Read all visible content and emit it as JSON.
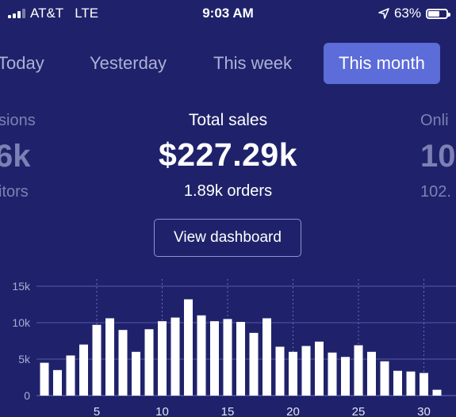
{
  "status_bar": {
    "carrier": "AT&T",
    "network": "LTE",
    "time": "9:03 AM",
    "battery": "63%",
    "battery_level": 0.63,
    "icons": [
      "signal-icon",
      "location-arrow-icon",
      "battery-icon"
    ]
  },
  "tabs": [
    {
      "label": "Today",
      "active": false
    },
    {
      "label": "Yesterday",
      "active": false
    },
    {
      "label": "This week",
      "active": false
    },
    {
      "label": "This month",
      "active": true
    }
  ],
  "metrics": {
    "left": {
      "label": "sions",
      "value": "6k",
      "sub": "itors"
    },
    "center": {
      "label": "Total sales",
      "value": "$227.29k",
      "sub": "1.89k orders"
    },
    "right": {
      "label": "Onli",
      "value": "10",
      "sub": "102."
    }
  },
  "dashboard_button": "View dashboard",
  "colors": {
    "background": "#1f226a",
    "active_tab": "#5c6cd8",
    "bar": "#ffffff",
    "grid": "#5658a8",
    "muted_text": "#7d80b4"
  },
  "chart_data": {
    "type": "bar",
    "title": "",
    "xlabel": "",
    "ylabel": "",
    "x": [
      1,
      2,
      3,
      4,
      5,
      6,
      7,
      8,
      9,
      10,
      11,
      12,
      13,
      14,
      15,
      16,
      17,
      18,
      19,
      20,
      21,
      22,
      23,
      24,
      25,
      26,
      27,
      28,
      29,
      30,
      31
    ],
    "values": [
      4.5,
      3.5,
      5.5,
      7,
      9.7,
      10.6,
      9,
      6,
      9.1,
      10.2,
      10.7,
      13.2,
      11,
      10.2,
      10.5,
      10.1,
      8.6,
      10.6,
      6.7,
      6,
      6.8,
      7.4,
      5.9,
      5.3,
      6.9,
      6,
      4.7,
      3.4,
      3.3,
      3.1,
      0.8
    ],
    "xticks": [
      5,
      10,
      15,
      20,
      25,
      30
    ],
    "xtick_labels": [
      "5",
      "10",
      "15",
      "20",
      "25",
      "30"
    ],
    "yticks": [
      0,
      5,
      10,
      15
    ],
    "ytick_labels": [
      "0",
      "5k",
      "10k",
      "15k"
    ],
    "ylim": [
      0,
      15
    ],
    "grid": true
  }
}
